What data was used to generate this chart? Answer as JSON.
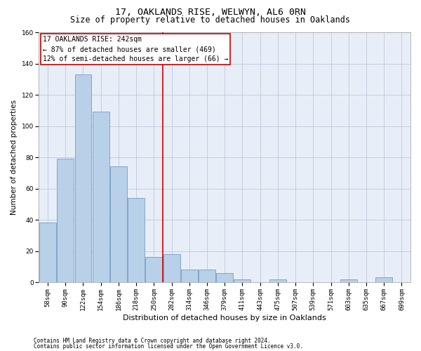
{
  "title": "17, OAKLANDS RISE, WELWYN, AL6 0RN",
  "subtitle": "Size of property relative to detached houses in Oaklands",
  "xlabel": "Distribution of detached houses by size in Oaklands",
  "ylabel": "Number of detached properties",
  "bar_color": "#b8d0e8",
  "bar_edge_color": "#6090c0",
  "background_color": "#e8eef8",
  "grid_color": "#c0c8d8",
  "categories": [
    "58sqm",
    "90sqm",
    "122sqm",
    "154sqm",
    "186sqm",
    "218sqm",
    "250sqm",
    "282sqm",
    "314sqm",
    "346sqm",
    "379sqm",
    "411sqm",
    "443sqm",
    "475sqm",
    "507sqm",
    "539sqm",
    "571sqm",
    "603sqm",
    "635sqm",
    "667sqm",
    "699sqm"
  ],
  "values": [
    38,
    79,
    133,
    109,
    74,
    54,
    16,
    18,
    8,
    8,
    6,
    2,
    0,
    2,
    0,
    0,
    0,
    2,
    0,
    3,
    0
  ],
  "ylim": [
    0,
    160
  ],
  "yticks": [
    0,
    20,
    40,
    60,
    80,
    100,
    120,
    140,
    160
  ],
  "property_line_x": 6.5,
  "property_line_color": "#cc0000",
  "annotation_line1": "17 OAKLANDS RISE: 242sqm",
  "annotation_line2": "← 87% of detached houses are smaller (469)",
  "annotation_line3": "12% of semi-detached houses are larger (66) →",
  "annotation_box_color": "#ffffff",
  "annotation_box_edge": "#cc0000",
  "footnote1": "Contains HM Land Registry data © Crown copyright and database right 2024.",
  "footnote2": "Contains public sector information licensed under the Open Government Licence v3.0.",
  "title_fontsize": 9.5,
  "subtitle_fontsize": 8.5,
  "xlabel_fontsize": 8,
  "ylabel_fontsize": 7.5,
  "tick_fontsize": 6.5,
  "annotation_fontsize": 7,
  "footnote_fontsize": 5.5
}
